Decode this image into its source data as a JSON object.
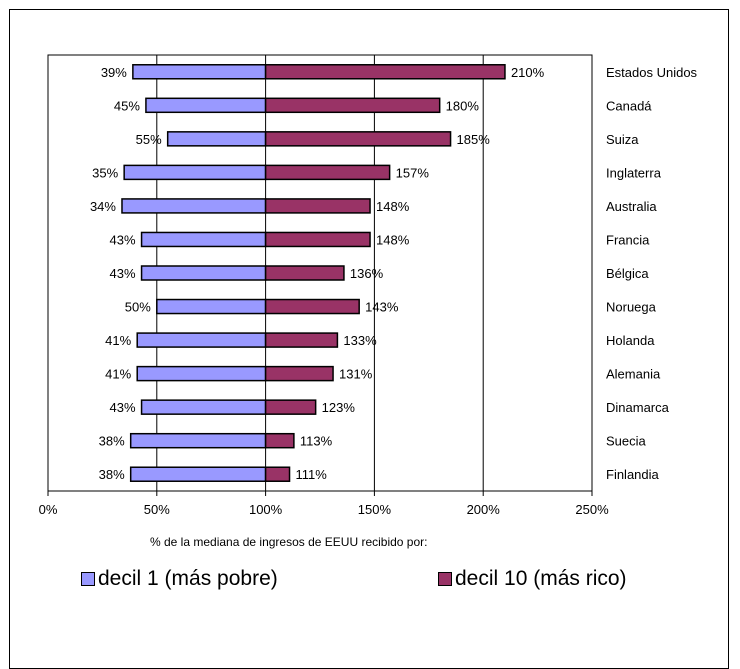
{
  "chart_data": {
    "type": "bar",
    "orientation": "horizontal-diverging",
    "xlabel": "% de la mediana de ingresos de EEUU recibido por:",
    "x_ticks": [
      "0%",
      "50%",
      "100%",
      "150%",
      "200%",
      "250%"
    ],
    "xlim": [
      0,
      250
    ],
    "baseline": 100,
    "grid": "vertical",
    "legend_position": "bottom",
    "categories": [
      "Estados Unidos",
      "Canadá",
      "Suiza",
      "Inglaterra",
      "Australia",
      "Francia",
      "Bélgica",
      "Noruega",
      "Holanda",
      "Alemania",
      "Dinamarca",
      "Suecia",
      "Finlandia"
    ],
    "series": [
      {
        "name": "decil 1 (más pobre)",
        "color": "#9999ff",
        "values": [
          39,
          45,
          55,
          35,
          34,
          43,
          43,
          50,
          41,
          41,
          43,
          38,
          38
        ],
        "labels": [
          "39%",
          "45%",
          "55%",
          "35%",
          "34%",
          "43%",
          "43%",
          "50%",
          "41%",
          "41%",
          "43%",
          "38%",
          "38%"
        ]
      },
      {
        "name": "decil 10 (más rico)",
        "color": "#993366",
        "values": [
          210,
          180,
          185,
          157,
          148,
          148,
          136,
          143,
          133,
          131,
          123,
          113,
          111
        ],
        "labels": [
          "210%",
          "180%",
          "185%",
          "157%",
          "148%",
          "148%",
          "136%",
          "143%",
          "133%",
          "131%",
          "123%",
          "113%",
          "111%"
        ]
      }
    ]
  }
}
